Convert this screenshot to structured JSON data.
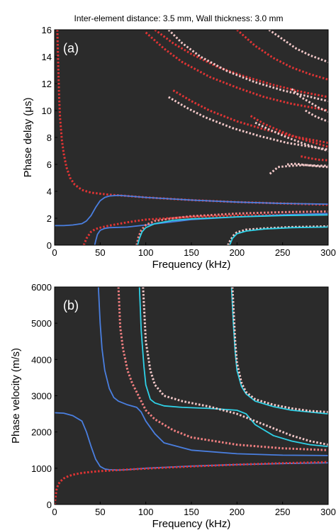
{
  "title": "Inter-element distance: 3.5 mm, Wall thickness: 3.0 mm",
  "colors": {
    "background": "#2b2b2b",
    "blue": "#4a7fe0",
    "cyan": "#2fd2e8",
    "red_dotted": "#e03434",
    "pink_dotted": "#f07f80",
    "light_dotted": "#f2c8c8"
  },
  "chart_data": [
    {
      "type": "line",
      "panel_label": "(a)",
      "xlabel": "Frequency (kHz)",
      "ylabel": "Phase delay (μs)",
      "xlim": [
        0,
        300
      ],
      "ylim": [
        0,
        16
      ],
      "xticks": [
        0,
        50,
        100,
        150,
        200,
        250,
        300
      ],
      "yticks": [
        0,
        2,
        4,
        6,
        8,
        10,
        12,
        14,
        16
      ],
      "grid": false,
      "series": [
        {
          "style": "dotted",
          "color": "#e03434",
          "x": [
            3,
            4,
            5,
            6,
            8,
            10,
            13,
            17,
            22,
            30,
            40,
            60,
            80,
            100,
            150,
            200,
            250,
            300
          ],
          "y": [
            16,
            13.5,
            11,
            9.5,
            7.8,
            6.8,
            5.8,
            5.0,
            4.5,
            4.1,
            3.9,
            3.75,
            3.65,
            3.55,
            3.35,
            3.2,
            3.1,
            3.0
          ]
        },
        {
          "style": "solid",
          "color": "#4a7fe0",
          "x": [
            0,
            10,
            20,
            30,
            35,
            40,
            45,
            50,
            55,
            60,
            70,
            80,
            100,
            150,
            200,
            250,
            300
          ],
          "y": [
            1.45,
            1.45,
            1.5,
            1.6,
            1.8,
            2.2,
            2.8,
            3.3,
            3.55,
            3.65,
            3.7,
            3.65,
            3.55,
            3.35,
            3.2,
            3.1,
            3.05
          ]
        },
        {
          "style": "dotted",
          "color": "#e03434",
          "x": [
            32,
            35,
            40,
            45,
            50,
            60,
            80,
            100,
            150,
            200,
            250,
            300
          ],
          "y": [
            0,
            0.5,
            1.0,
            1.2,
            1.3,
            1.45,
            1.7,
            1.9,
            2.1,
            2.2,
            2.25,
            2.3
          ]
        },
        {
          "style": "solid",
          "color": "#4a7fe0",
          "x": [
            44,
            45,
            47,
            50,
            55,
            60,
            80,
            100,
            150,
            200,
            250,
            300
          ],
          "y": [
            0,
            0.3,
            0.8,
            1.1,
            1.25,
            1.3,
            1.35,
            1.5,
            1.9,
            2.1,
            2.25,
            2.35
          ]
        },
        {
          "style": "dotted",
          "color": "#f07f80",
          "x": [
            90,
            92,
            95,
            100,
            110,
            130,
            150,
            200,
            250,
            300
          ],
          "y": [
            0,
            0.6,
            1.1,
            1.5,
            1.8,
            2.0,
            2.15,
            2.35,
            2.45,
            2.5
          ]
        },
        {
          "style": "solid",
          "color": "#2fd2e8",
          "x": [
            91,
            93,
            96,
            100,
            110,
            130,
            150,
            200,
            250,
            300
          ],
          "y": [
            0,
            0.5,
            1.0,
            1.3,
            1.6,
            1.85,
            1.95,
            2.1,
            2.2,
            2.25
          ]
        },
        {
          "style": "dotted",
          "color": "#f2c8c8",
          "x": [
            190,
            193,
            197,
            200,
            210,
            230,
            260,
            300
          ],
          "y": [
            0,
            0.4,
            0.8,
            0.95,
            1.15,
            1.25,
            1.35,
            1.4
          ]
        },
        {
          "style": "solid",
          "color": "#2fd2e8",
          "x": [
            192,
            195,
            200,
            210,
            230,
            260,
            300
          ],
          "y": [
            0,
            0.5,
            0.85,
            1.05,
            1.2,
            1.3,
            1.35
          ]
        },
        {
          "style": "dotted",
          "color": "#e03434",
          "x": [
            110,
            130,
            150,
            180,
            210,
            240,
            270,
            300
          ],
          "y": [
            16,
            15.0,
            14.2,
            13.2,
            12.5,
            11.9,
            11.4,
            11.0
          ]
        },
        {
          "style": "dotted",
          "color": "#e03434",
          "x": [
            100,
            120,
            140,
            170,
            200,
            230,
            260,
            300
          ],
          "y": [
            15.8,
            14.6,
            13.6,
            12.5,
            11.7,
            11.0,
            10.5,
            10.0
          ]
        },
        {
          "style": "dotted",
          "color": "#f2c8c8",
          "x": [
            125,
            140,
            160,
            190,
            220,
            250,
            300
          ],
          "y": [
            16,
            15.0,
            14.0,
            12.9,
            12.1,
            11.5,
            10.7
          ]
        },
        {
          "style": "dotted",
          "color": "#e03434",
          "x": [
            130,
            150,
            170,
            200,
            230,
            260,
            300
          ],
          "y": [
            11.5,
            10.7,
            10.0,
            9.2,
            8.6,
            8.1,
            7.6
          ]
        },
        {
          "style": "dotted",
          "color": "#f2c8c8",
          "x": [
            125,
            145,
            165,
            195,
            225,
            255,
            300
          ],
          "y": [
            11.0,
            10.2,
            9.5,
            8.7,
            8.1,
            7.6,
            7.1
          ]
        },
        {
          "style": "dotted",
          "color": "#e03434",
          "x": [
            200,
            220,
            240,
            260,
            280,
            300
          ],
          "y": [
            16,
            14.8,
            13.9,
            13.2,
            12.7,
            12.3
          ]
        },
        {
          "style": "dotted",
          "color": "#f2c8c8",
          "x": [
            235,
            250,
            265,
            280,
            300
          ],
          "y": [
            16,
            15.3,
            14.6,
            14.1,
            13.6
          ]
        },
        {
          "style": "dotted",
          "color": "#e03434",
          "x": [
            215,
            230,
            250,
            270,
            300
          ],
          "y": [
            9.6,
            9.0,
            8.4,
            7.9,
            7.3
          ]
        },
        {
          "style": "dotted",
          "color": "#f2c8c8",
          "x": [
            220,
            235,
            255,
            275,
            300
          ],
          "y": [
            9.1,
            8.6,
            8.0,
            7.5,
            7.0
          ]
        },
        {
          "style": "dotted",
          "color": "#f2c8c8",
          "x": [
            260,
            270,
            280,
            290,
            300
          ],
          "y": [
            11.6,
            11.0,
            10.6,
            10.2,
            9.9
          ]
        },
        {
          "style": "dotted",
          "color": "#f2c8c8",
          "x": [
            275,
            285,
            295,
            300
          ],
          "y": [
            10.0,
            9.6,
            9.3,
            9.2
          ]
        },
        {
          "style": "dotted",
          "color": "#f2c8c8",
          "x": [
            236,
            245,
            260,
            275,
            290,
            300
          ],
          "y": [
            5.3,
            5.8,
            5.9,
            5.95,
            5.9,
            5.9
          ]
        },
        {
          "style": "dotted",
          "color": "#e03434",
          "x": [
            270,
            280,
            290,
            300
          ],
          "y": [
            6.6,
            6.45,
            6.35,
            6.3
          ]
        },
        {
          "style": "dotted",
          "color": "#f2c8c8",
          "x": [
            255,
            265,
            275,
            290,
            300
          ],
          "y": [
            6.0,
            6.05,
            5.95,
            5.85,
            5.8
          ]
        }
      ]
    },
    {
      "type": "line",
      "panel_label": "(b)",
      "xlabel": "Frequency (kHz)",
      "ylabel": "Phase velocity (m/s)",
      "xlim": [
        0,
        300
      ],
      "ylim": [
        0,
        6000
      ],
      "xticks": [
        0,
        50,
        100,
        150,
        200,
        250,
        300
      ],
      "yticks": [
        0,
        1000,
        2000,
        3000,
        4000,
        5000,
        6000
      ],
      "grid": false,
      "series": [
        {
          "style": "solid",
          "color": "#4a7fe0",
          "x": [
            0,
            10,
            20,
            30,
            35,
            40,
            45,
            50,
            55,
            60,
            70,
            80,
            100,
            150,
            200,
            250,
            300
          ],
          "y": [
            2530,
            2520,
            2450,
            2300,
            2000,
            1600,
            1250,
            1050,
            980,
            960,
            950,
            960,
            1000,
            1060,
            1100,
            1130,
            1150
          ]
        },
        {
          "style": "dotted",
          "color": "#e03434",
          "x": [
            0,
            2,
            4,
            6,
            10,
            15,
            20,
            30,
            40,
            50,
            70,
            100,
            150,
            200,
            250,
            300
          ],
          "y": [
            0,
            400,
            550,
            630,
            720,
            780,
            820,
            870,
            900,
            920,
            950,
            990,
            1050,
            1100,
            1140,
            1170
          ]
        },
        {
          "style": "solid",
          "color": "#4a7fe0",
          "x": [
            48,
            50,
            52,
            55,
            60,
            65,
            70,
            80,
            90,
            95,
            100,
            110,
            120,
            150,
            200,
            250,
            300
          ],
          "y": [
            6000,
            5000,
            4300,
            3700,
            3200,
            2950,
            2850,
            2750,
            2680,
            2550,
            2300,
            1950,
            1700,
            1500,
            1400,
            1360,
            1350
          ]
        },
        {
          "style": "dotted",
          "color": "#f07f80",
          "x": [
            70,
            72,
            75,
            80,
            85,
            90,
            95,
            100,
            110,
            130,
            150,
            200,
            250,
            300
          ],
          "y": [
            6000,
            4900,
            4300,
            3700,
            3350,
            3100,
            2850,
            2600,
            2350,
            2050,
            1850,
            1650,
            1550,
            1500
          ]
        },
        {
          "style": "solid",
          "color": "#2fd2e8",
          "x": [
            93,
            95,
            98,
            100,
            105,
            110,
            120,
            140,
            170,
            200,
            210,
            220,
            240,
            260,
            280,
            300
          ],
          "y": [
            6000,
            4800,
            3800,
            3300,
            2900,
            2800,
            2720,
            2680,
            2650,
            2600,
            2500,
            2200,
            1900,
            1750,
            1650,
            1600
          ]
        },
        {
          "style": "dotted",
          "color": "#f2c8c8",
          "x": [
            97,
            100,
            105,
            110,
            120,
            140,
            170,
            200,
            230,
            260,
            280,
            300
          ],
          "y": [
            6000,
            4500,
            3700,
            3300,
            3000,
            2850,
            2700,
            2500,
            2200,
            1900,
            1750,
            1650
          ]
        },
        {
          "style": "solid",
          "color": "#2fd2e8",
          "x": [
            194,
            196,
            198,
            200,
            205,
            210,
            220,
            240,
            260,
            280,
            300
          ],
          "y": [
            6000,
            5000,
            4200,
            3700,
            3250,
            3050,
            2850,
            2700,
            2600,
            2550,
            2500
          ]
        },
        {
          "style": "dotted",
          "color": "#f2c8c8",
          "x": [
            195,
            198,
            200,
            205,
            210,
            220,
            240,
            260,
            280,
            300
          ],
          "y": [
            6000,
            4500,
            3900,
            3350,
            3100,
            2900,
            2750,
            2650,
            2580,
            2550
          ]
        }
      ]
    }
  ]
}
